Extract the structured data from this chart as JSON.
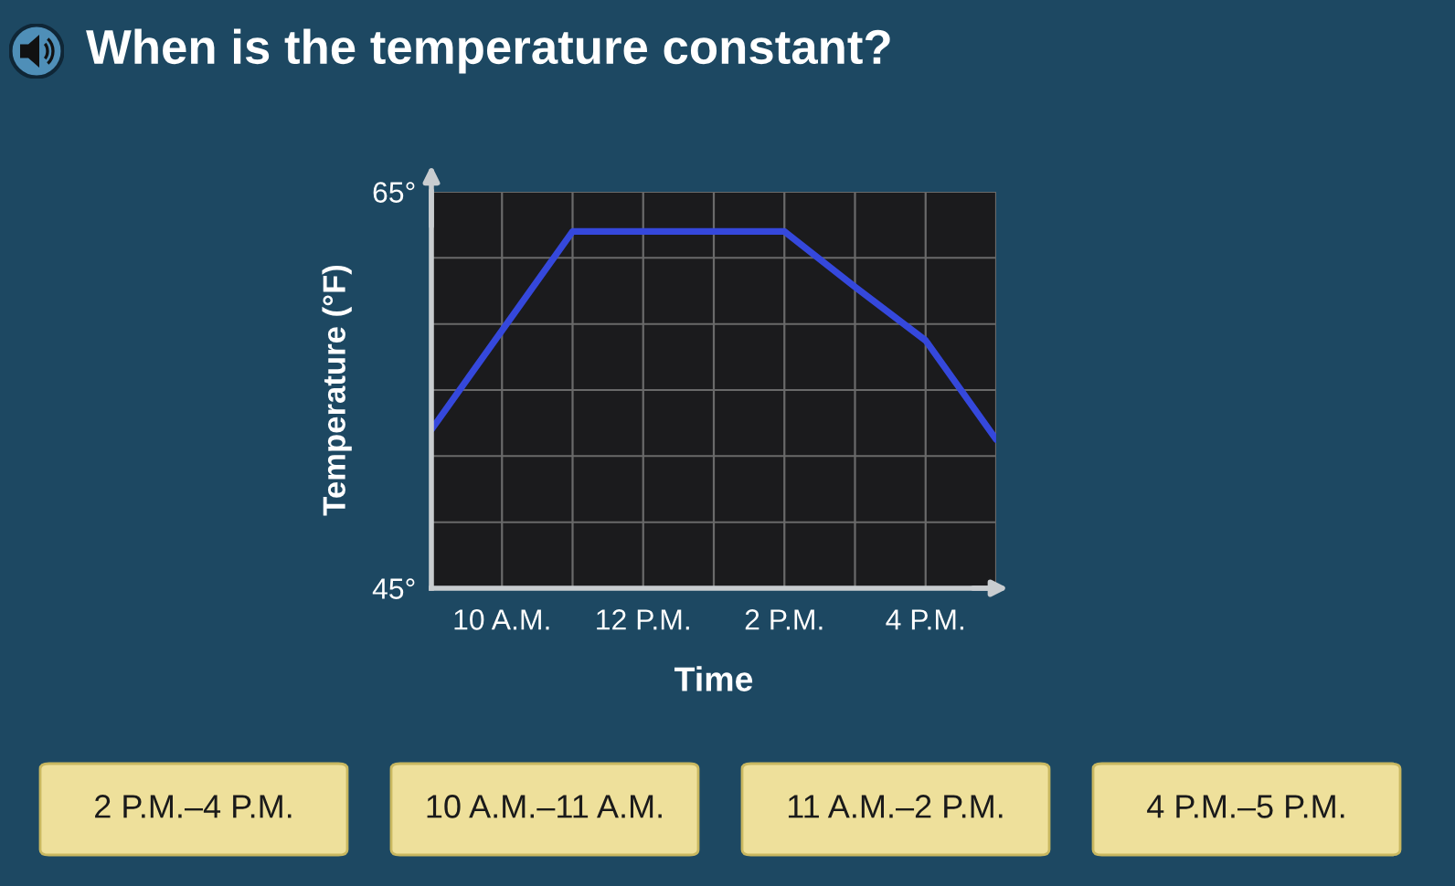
{
  "chart_data": {
    "type": "line",
    "title": "When is the temperature constant?",
    "xlabel": "Time",
    "ylabel": "Temperature (°F)",
    "categories": [
      null,
      "10 A.M.",
      null,
      "12 P.M.",
      null,
      "2 P.M.",
      null,
      "4 P.M.",
      null
    ],
    "series": [
      {
        "color": "#3548dc",
        "values": [
          53,
          58,
          63,
          63,
          63,
          63,
          60.2,
          57.5,
          52.5
        ]
      }
    ],
    "ylim": [
      45,
      65
    ],
    "yticks": [
      {
        "value": 45,
        "label": "45°"
      },
      {
        "value": 48.33,
        "label": null
      },
      {
        "value": 51.67,
        "label": null
      },
      {
        "value": 55,
        "label": null
      },
      {
        "value": 58.33,
        "label": null
      },
      {
        "value": 61.67,
        "label": null
      },
      {
        "value": 65,
        "label": "65°"
      }
    ],
    "grid": true,
    "annotations": [
      "2 P.M.–4 P.M.",
      "10 A.M.–11 A.M.",
      "11 A.M.–2 P.M.",
      "4 P.M.–5 P.M."
    ]
  }
}
